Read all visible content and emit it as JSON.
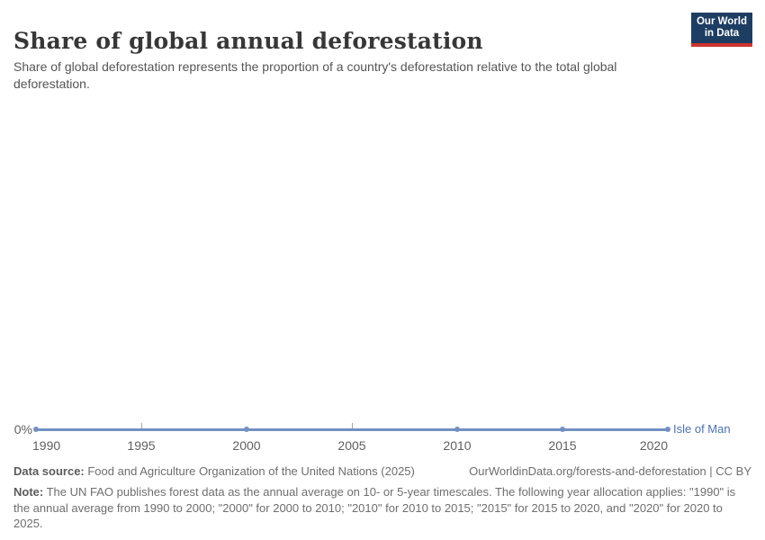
{
  "header": {
    "title": "Share of global annual deforestation",
    "subtitle": "Share of global deforestation represents the proportion of a country's deforestation relative to the total global deforestation.",
    "logo": {
      "line1": "Our World",
      "line2": "in Data",
      "bg_color": "#1d3d63",
      "accent_color": "#cf352e"
    }
  },
  "chart_data": {
    "type": "line",
    "title": "Share of global annual deforestation",
    "x": [
      1990,
      2000,
      2010,
      2015,
      2020
    ],
    "series": [
      {
        "name": "Isle of Man",
        "values": [
          0,
          0,
          0,
          0,
          0
        ],
        "color": "#7290c1",
        "label_color": "#4a72b5"
      }
    ],
    "x_ticks": [
      "1990",
      "1995",
      "2000",
      "2005",
      "2010",
      "2015",
      "2020"
    ],
    "x_range": [
      1990,
      2020
    ],
    "y_tick_label": "0%",
    "ylim": [
      0,
      0
    ],
    "ylabel": "",
    "grid": false,
    "legend_position": "right-of-line"
  },
  "footer": {
    "datasource_label": "Data source:",
    "datasource_text": " Food and Agriculture Organization of the United Nations (2025)",
    "link": "OurWorldinData.org/forests-and-deforestation | CC BY",
    "note_label": "Note:",
    "note_text": " The UN FAO publishes forest data as the annual average on 10- or 5-year timescales. The following year allocation applies: \"1990\" is the annual average from 1990 to 2000; \"2000\" for 2000 to 2010; \"2010\" for 2010 to 2015; \"2015\" for 2015 to 2020, and \"2020\" for 2020 to 2025."
  }
}
